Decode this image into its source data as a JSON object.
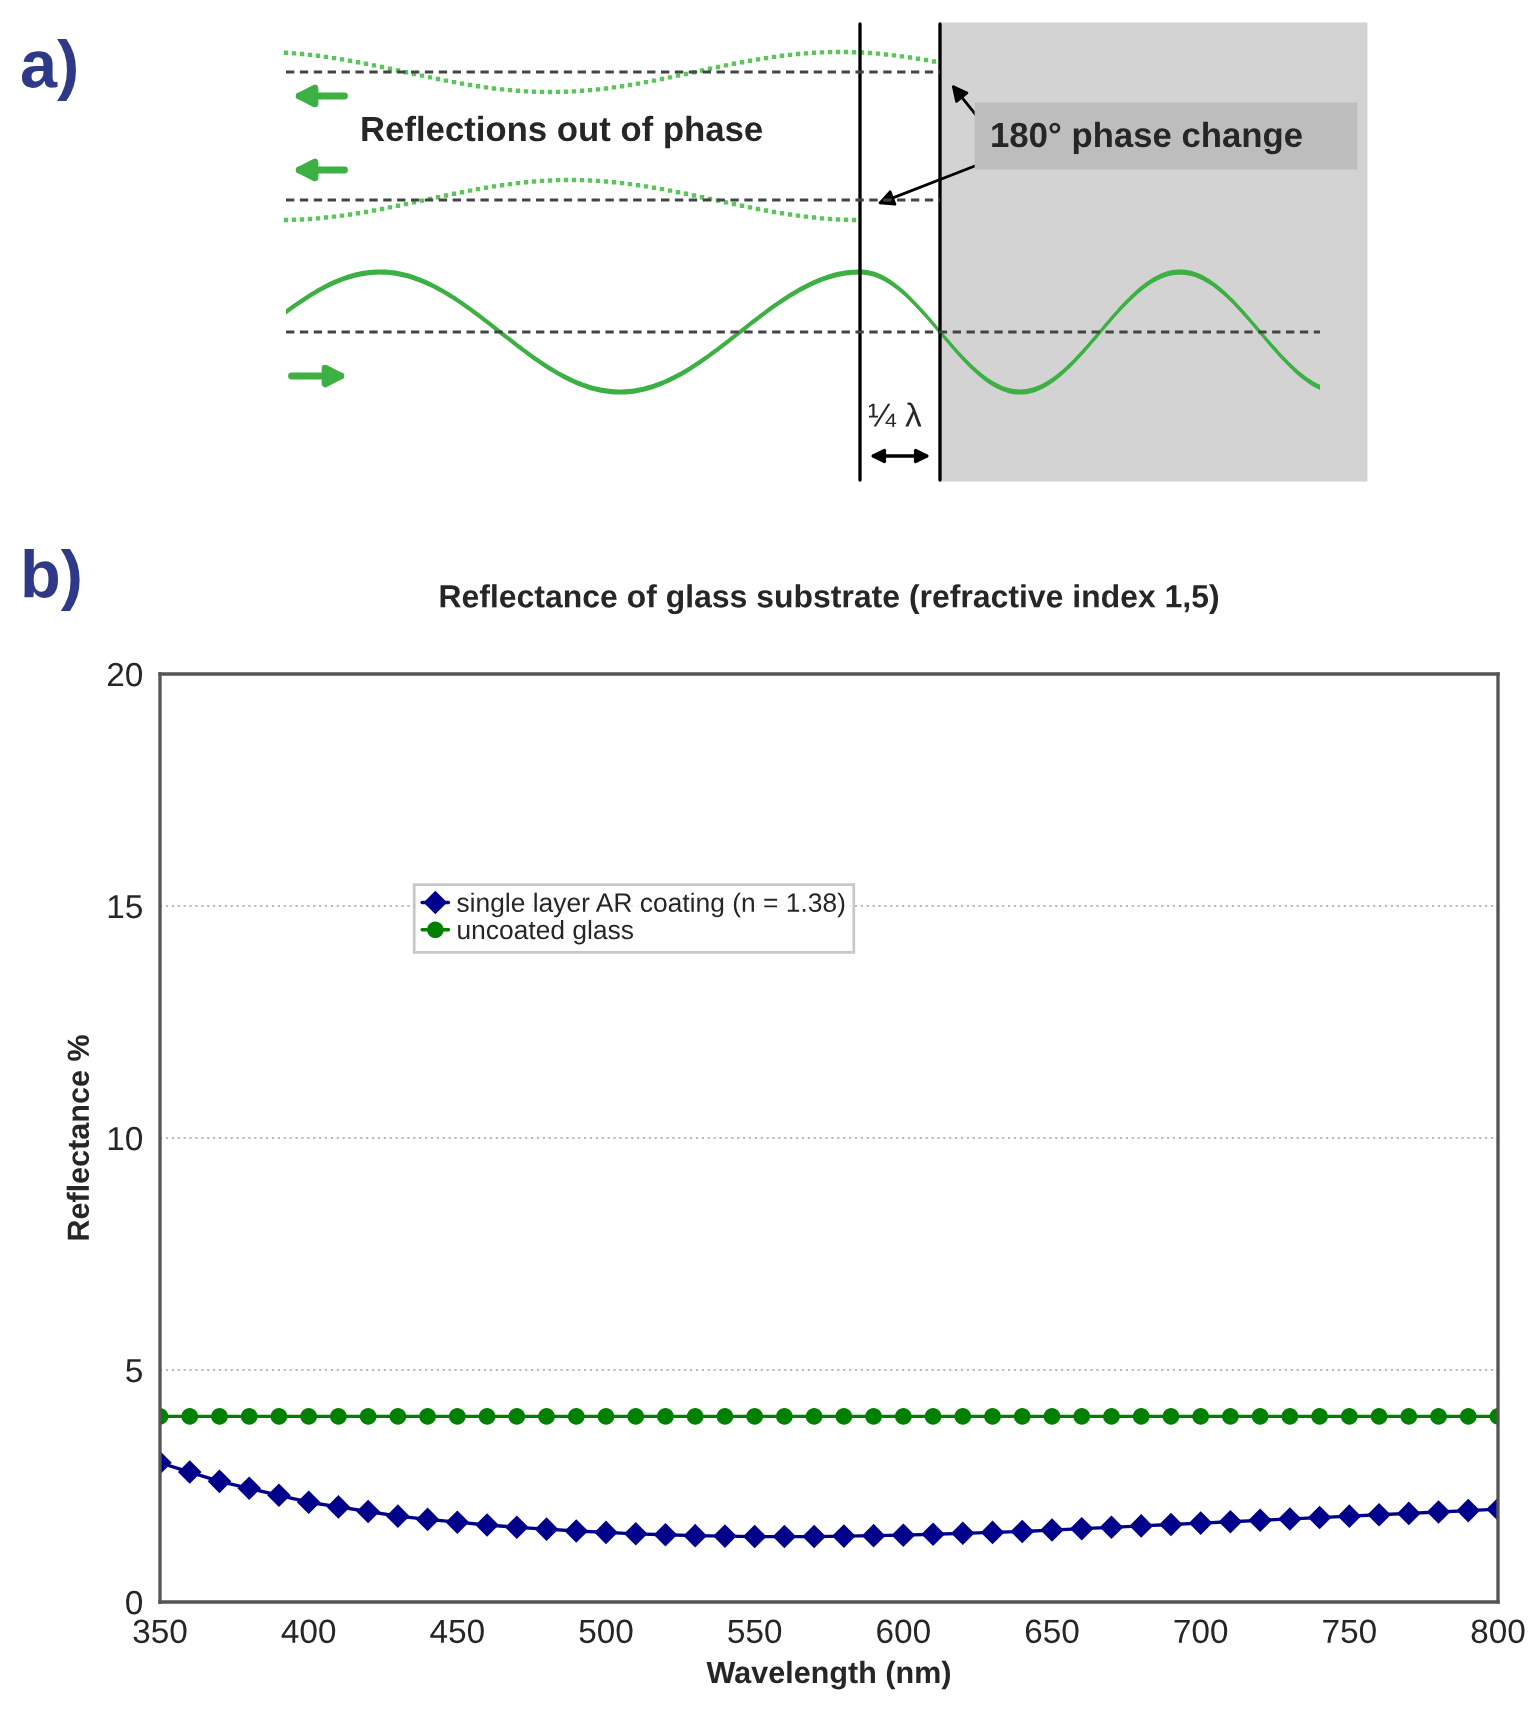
{
  "chart_data": [
    {
      "type": "other",
      "annotations": [
        "a)",
        "Reflections out of phase",
        "180° phase change",
        "¼ λ"
      ]
    },
    {
      "type": "line",
      "title": "Reflectance of glass substrate (refractive index 1,5)",
      "xlabel": "Wavelength (nm)",
      "ylabel": "Reflectance %",
      "annotations": [
        "b)"
      ],
      "x": [
        350,
        360,
        370,
        380,
        390,
        400,
        410,
        420,
        430,
        440,
        450,
        460,
        470,
        480,
        490,
        500,
        510,
        520,
        530,
        540,
        550,
        560,
        570,
        580,
        590,
        600,
        610,
        620,
        630,
        640,
        650,
        660,
        670,
        680,
        690,
        700,
        710,
        720,
        730,
        740,
        750,
        760,
        770,
        780,
        790,
        800
      ],
      "series": [
        {
          "name": "single layer AR coating (n = 1.38)",
          "color": "#00008b",
          "marker": "diamond",
          "values": [
            3.0,
            2.8,
            2.6,
            2.45,
            2.3,
            2.15,
            2.05,
            1.95,
            1.85,
            1.78,
            1.72,
            1.66,
            1.61,
            1.57,
            1.53,
            1.5,
            1.47,
            1.45,
            1.43,
            1.42,
            1.41,
            1.41,
            1.41,
            1.42,
            1.43,
            1.44,
            1.46,
            1.48,
            1.5,
            1.52,
            1.55,
            1.58,
            1.61,
            1.64,
            1.67,
            1.7,
            1.73,
            1.76,
            1.79,
            1.82,
            1.85,
            1.88,
            1.91,
            1.94,
            1.97,
            2.0
          ]
        },
        {
          "name": "uncoated glass",
          "color": "#008000",
          "marker": "circle",
          "values": [
            4.0,
            4.0,
            4.0,
            4.0,
            4.0,
            4.0,
            4.0,
            4.0,
            4.0,
            4.0,
            4.0,
            4.0,
            4.0,
            4.0,
            4.0,
            4.0,
            4.0,
            4.0,
            4.0,
            4.0,
            4.0,
            4.0,
            4.0,
            4.0,
            4.0,
            4.0,
            4.0,
            4.0,
            4.0,
            4.0,
            4.0,
            4.0,
            4.0,
            4.0,
            4.0,
            4.0,
            4.0,
            4.0,
            4.0,
            4.0,
            4.0,
            4.0,
            4.0,
            4.0,
            4.0,
            4.0
          ]
        }
      ],
      "xlim": [
        350,
        800
      ],
      "xticks": [
        350,
        400,
        450,
        500,
        550,
        600,
        650,
        700,
        750,
        800
      ],
      "ylim": [
        0,
        20
      ],
      "yticks": [
        0,
        5,
        10,
        15,
        20
      ],
      "grid": "y",
      "legend": "top",
      "line_style": "solid"
    }
  ]
}
